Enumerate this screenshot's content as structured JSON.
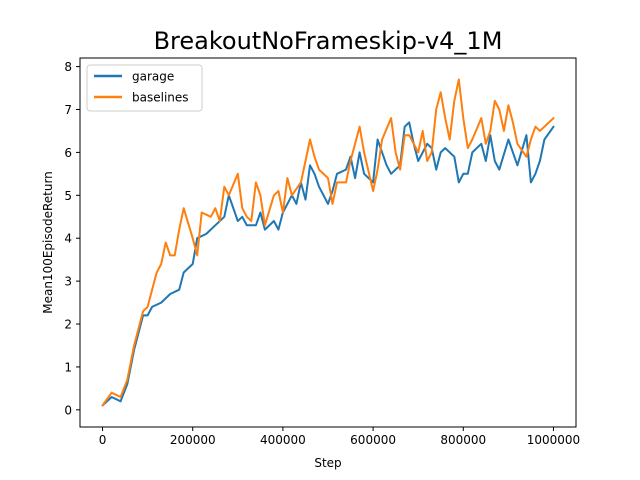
{
  "chart_data": {
    "type": "line",
    "title": "BreakoutNoFrameskip-v4_1M",
    "xlabel": "Step",
    "ylabel": "Mean100EpisodeReturn",
    "xlim": [
      -50000,
      1050000
    ],
    "ylim": [
      -0.4,
      8.2
    ],
    "x_ticks": [
      0,
      200000,
      400000,
      600000,
      800000,
      1000000
    ],
    "x_tick_labels": [
      "0",
      "200000",
      "400000",
      "600000",
      "800000",
      "1000000"
    ],
    "y_ticks": [
      0,
      1,
      2,
      3,
      4,
      5,
      6,
      7,
      8
    ],
    "y_tick_labels": [
      "0",
      "1",
      "2",
      "3",
      "4",
      "5",
      "6",
      "7",
      "8"
    ],
    "grid": false,
    "legend": "top-left",
    "series": [
      {
        "name": "garage",
        "color": "#1f77b4",
        "x": [
          0,
          20000,
          40000,
          55000,
          70000,
          80000,
          90000,
          100000,
          110000,
          130000,
          150000,
          170000,
          180000,
          200000,
          210000,
          230000,
          250000,
          270000,
          280000,
          300000,
          310000,
          320000,
          340000,
          350000,
          360000,
          380000,
          390000,
          400000,
          420000,
          430000,
          440000,
          450000,
          460000,
          470000,
          480000,
          500000,
          510000,
          520000,
          540000,
          550000,
          560000,
          570000,
          580000,
          600000,
          610000,
          620000,
          630000,
          640000,
          660000,
          670000,
          680000,
          690000,
          700000,
          720000,
          730000,
          740000,
          750000,
          760000,
          780000,
          790000,
          800000,
          810000,
          820000,
          840000,
          850000,
          860000,
          870000,
          880000,
          900000,
          910000,
          920000,
          940000,
          950000,
          960000,
          970000,
          980000,
          1000000
        ],
        "y": [
          0.1,
          0.3,
          0.2,
          0.6,
          1.4,
          1.8,
          2.2,
          2.2,
          2.4,
          2.5,
          2.7,
          2.8,
          3.2,
          3.4,
          4.0,
          4.1,
          4.3,
          4.5,
          5.0,
          4.4,
          4.5,
          4.3,
          4.3,
          4.6,
          4.2,
          4.4,
          4.2,
          4.6,
          5.0,
          4.8,
          5.3,
          4.9,
          5.7,
          5.5,
          5.2,
          4.8,
          5.1,
          5.5,
          5.6,
          5.9,
          5.4,
          6.0,
          5.5,
          5.3,
          6.3,
          6.0,
          5.7,
          5.5,
          5.7,
          6.6,
          6.7,
          6.2,
          5.8,
          6.2,
          6.1,
          5.6,
          6.0,
          6.1,
          5.9,
          5.3,
          5.5,
          5.5,
          6.0,
          6.2,
          5.8,
          6.4,
          5.8,
          5.6,
          6.3,
          6.0,
          5.7,
          6.4,
          5.3,
          5.5,
          5.8,
          6.3,
          6.6
        ]
      },
      {
        "name": "baselines",
        "color": "#ff7f0e",
        "x": [
          0,
          20000,
          40000,
          55000,
          70000,
          80000,
          90000,
          100000,
          110000,
          120000,
          130000,
          140000,
          150000,
          160000,
          170000,
          180000,
          200000,
          210000,
          220000,
          240000,
          250000,
          260000,
          270000,
          280000,
          300000,
          310000,
          320000,
          330000,
          340000,
          350000,
          360000,
          380000,
          390000,
          400000,
          410000,
          420000,
          440000,
          450000,
          460000,
          470000,
          480000,
          500000,
          510000,
          520000,
          540000,
          550000,
          560000,
          570000,
          580000,
          600000,
          610000,
          620000,
          640000,
          650000,
          660000,
          670000,
          680000,
          700000,
          710000,
          720000,
          730000,
          740000,
          750000,
          760000,
          770000,
          780000,
          790000,
          800000,
          810000,
          820000,
          840000,
          850000,
          860000,
          870000,
          880000,
          890000,
          900000,
          910000,
          920000,
          940000,
          950000,
          960000,
          970000,
          980000,
          1000000
        ],
        "y": [
          0.1,
          0.4,
          0.3,
          0.7,
          1.5,
          1.9,
          2.3,
          2.4,
          2.8,
          3.2,
          3.4,
          3.9,
          3.6,
          3.6,
          4.2,
          4.7,
          4.0,
          3.6,
          4.6,
          4.5,
          4.7,
          4.4,
          5.2,
          5.0,
          5.5,
          4.7,
          4.5,
          4.4,
          5.3,
          5.0,
          4.3,
          5.0,
          5.1,
          4.6,
          5.4,
          5.0,
          5.3,
          5.8,
          6.3,
          5.9,
          5.6,
          5.4,
          4.8,
          5.3,
          5.3,
          5.8,
          6.2,
          6.6,
          6.0,
          5.1,
          5.6,
          6.3,
          6.8,
          6.0,
          5.6,
          6.4,
          6.4,
          6.0,
          6.5,
          5.8,
          6.0,
          7.0,
          7.4,
          6.8,
          6.3,
          7.2,
          7.7,
          6.8,
          6.1,
          6.3,
          6.8,
          6.2,
          6.5,
          7.2,
          7.0,
          6.5,
          7.1,
          6.7,
          6.2,
          5.9,
          6.3,
          6.6,
          6.5,
          6.6,
          6.8
        ]
      }
    ]
  }
}
